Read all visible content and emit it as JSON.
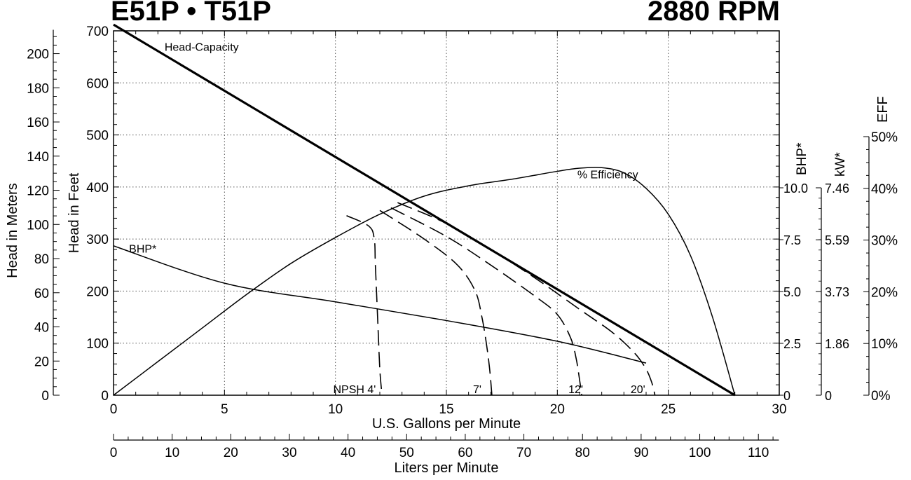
{
  "header": {
    "model": "E51P • T51P",
    "speed": "2880 RPM"
  },
  "chart_data": {
    "type": "line",
    "x_axis": {
      "label": "U.S. Gallons per Minute",
      "range": [
        0,
        30
      ],
      "ticks": [
        0,
        5,
        10,
        15,
        20,
        25,
        30
      ]
    },
    "x2_axis": {
      "label": "Liters per Minute",
      "range": [
        0,
        113.56
      ],
      "ticks": [
        0,
        10,
        20,
        30,
        40,
        50,
        60,
        70,
        80,
        90,
        100,
        110
      ]
    },
    "y_axis_feet": {
      "label": "Head in Feet",
      "range": [
        0,
        700
      ],
      "ticks": [
        0,
        100,
        200,
        300,
        400,
        500,
        600,
        700
      ]
    },
    "y_axis_meters": {
      "label": "Head in Meters",
      "range": [
        0,
        213.36
      ],
      "ticks": [
        0,
        20,
        40,
        60,
        80,
        100,
        120,
        140,
        160,
        180,
        200
      ]
    },
    "bhp_axis": {
      "label": "BHP*",
      "ticks": [
        {
          "v": 0,
          "t": "0"
        },
        {
          "v": 2.5,
          "t": "2.5"
        },
        {
          "v": 5.0,
          "t": "5.0"
        },
        {
          "v": 7.5,
          "t": "7.5"
        },
        {
          "v": 10.0,
          "t": "10.0"
        }
      ]
    },
    "kw_axis": {
      "label": "kW*",
      "ticks": [
        {
          "v": 0,
          "t": "0"
        },
        {
          "v": 1.86,
          "t": "1.86"
        },
        {
          "v": 3.73,
          "t": "3.73"
        },
        {
          "v": 5.59,
          "t": "5.59"
        },
        {
          "v": 7.46,
          "t": "7.46"
        }
      ]
    },
    "eff_axis": {
      "label": "EFF",
      "ticks": [
        {
          "v": 0,
          "t": "0%"
        },
        {
          "v": 10,
          "t": "10%"
        },
        {
          "v": 20,
          "t": "20%"
        },
        {
          "v": 30,
          "t": "30%"
        },
        {
          "v": 40,
          "t": "40%"
        },
        {
          "v": 50,
          "t": "50%"
        }
      ]
    },
    "grid": true,
    "series": [
      {
        "name": "Head-Capacity",
        "unit": "ft",
        "style": "bold",
        "points": [
          [
            0,
            712
          ],
          [
            28,
            0
          ]
        ]
      },
      {
        "name": "% Efficiency",
        "unit": "%",
        "style": "solid",
        "points": [
          [
            0,
            0
          ],
          [
            2,
            6.5
          ],
          [
            4,
            13
          ],
          [
            6,
            19.5
          ],
          [
            8,
            25.5
          ],
          [
            10,
            30.5
          ],
          [
            12,
            35
          ],
          [
            14,
            38.5
          ],
          [
            16,
            40.5
          ],
          [
            18,
            41.8
          ],
          [
            20,
            43.3
          ],
          [
            21,
            43.9
          ],
          [
            22,
            44
          ],
          [
            23,
            43
          ],
          [
            24,
            40
          ],
          [
            25,
            35
          ],
          [
            26,
            27
          ],
          [
            27,
            15
          ],
          [
            28,
            0
          ]
        ]
      },
      {
        "name": "BHP*",
        "unit": "hp",
        "style": "solid",
        "points": [
          [
            0,
            7.2
          ],
          [
            5,
            5.4
          ],
          [
            10,
            4.5
          ],
          [
            15,
            3.6
          ],
          [
            20,
            2.6
          ],
          [
            24,
            1.55
          ]
        ]
      },
      {
        "name": "NPSH 4'",
        "unit": "ft",
        "style": "dashed",
        "points": [
          [
            10.5,
            345
          ],
          [
            11.5,
            325
          ],
          [
            11.75,
            300
          ],
          [
            11.8,
            250
          ],
          [
            11.9,
            150
          ],
          [
            12.0,
            50
          ],
          [
            12.1,
            0
          ]
        ]
      },
      {
        "name": "7'",
        "unit": "ft",
        "style": "dashed",
        "points": [
          [
            12,
            355
          ],
          [
            14,
            300
          ],
          [
            15.5,
            250
          ],
          [
            16.3,
            200
          ],
          [
            16.6,
            150
          ],
          [
            16.8,
            100
          ],
          [
            16.95,
            50
          ],
          [
            17.05,
            0
          ]
        ]
      },
      {
        "name": "12'",
        "unit": "ft",
        "style": "dashed",
        "points": [
          [
            12.5,
            360
          ],
          [
            15,
            305
          ],
          [
            17,
            250
          ],
          [
            19,
            190
          ],
          [
            20,
            155
          ],
          [
            20.6,
            110
          ],
          [
            20.85,
            70
          ],
          [
            21.0,
            30
          ],
          [
            21.1,
            0
          ]
        ]
      },
      {
        "name": "20'",
        "unit": "ft",
        "style": "dashed",
        "points": [
          [
            12.8,
            370
          ],
          [
            15,
            330
          ],
          [
            17,
            280
          ],
          [
            19,
            225
          ],
          [
            21,
            165
          ],
          [
            22.5,
            120
          ],
          [
            23.5,
            80
          ],
          [
            24.0,
            50
          ],
          [
            24.25,
            25
          ],
          [
            24.4,
            0
          ]
        ]
      }
    ],
    "annotations": [
      {
        "text": "Head-Capacity",
        "x": 2.3,
        "y": 670
      },
      {
        "text": "% Efficiency",
        "x": 20.9,
        "y": 425
      },
      {
        "text": "BHP*",
        "x": 0.7,
        "y": 282
      },
      {
        "text": "NPSH 4'",
        "x": 9.9,
        "y": 12
      },
      {
        "text": "7'",
        "x": 16.2,
        "y": 12
      },
      {
        "text": "12'",
        "x": 20.5,
        "y": 12
      },
      {
        "text": "20'",
        "x": 23.3,
        "y": 12
      }
    ]
  }
}
